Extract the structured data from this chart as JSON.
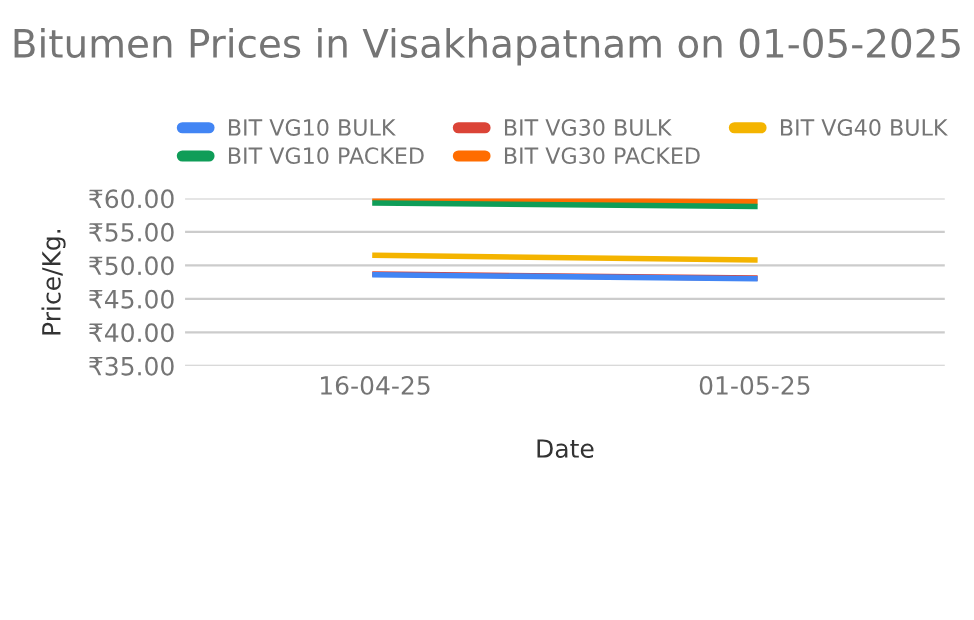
{
  "chart_data": {
    "type": "line",
    "title": "Bitumen Prices in Visakhapatnam on 01-05-2025",
    "xlabel": "Date",
    "ylabel": "Price/Kg.",
    "categories": [
      "16-04-25",
      "01-05-25"
    ],
    "series": [
      {
        "name": "BIT VG10 BULK",
        "color": "#4285f4",
        "values": [
          48.6,
          48.0
        ]
      },
      {
        "name": "BIT VG30 BULK",
        "color": "#db4437",
        "values": [
          48.7,
          48.1
        ]
      },
      {
        "name": "BIT VG40 BULK",
        "color": "#f4b400",
        "values": [
          51.5,
          50.8
        ]
      },
      {
        "name": "BIT VG10 PACKED",
        "color": "#0f9d58",
        "values": [
          59.3,
          58.8
        ]
      },
      {
        "name": "BIT VG30 PACKED",
        "color": "#ff6d00",
        "values": [
          60.0,
          59.5
        ]
      }
    ],
    "ylim": [
      35,
      60
    ],
    "yticks": [
      {
        "value": 35,
        "label": "₹35.00"
      },
      {
        "value": 40,
        "label": "₹40.00"
      },
      {
        "value": 45,
        "label": "₹45.00"
      },
      {
        "value": 50,
        "label": "₹50.00"
      },
      {
        "value": 55,
        "label": "₹55.00"
      },
      {
        "value": 60,
        "label": "₹60.00"
      }
    ],
    "grid": "y",
    "legend": "top",
    "marker": "none",
    "line_style": "solid"
  }
}
